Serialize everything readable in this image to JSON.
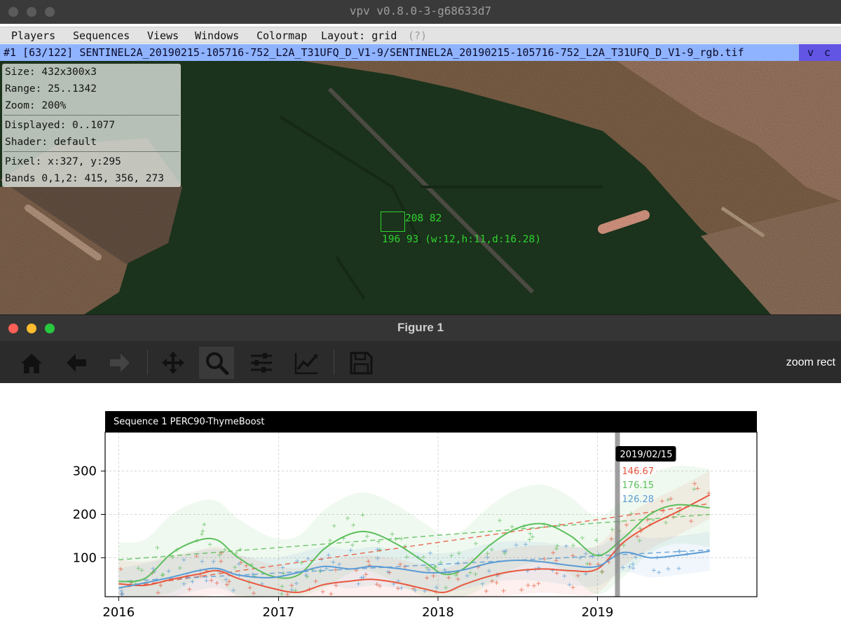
{
  "vpv_window": {
    "title": "vpv v0.8.0-3-g68633d7",
    "menu": [
      "Players",
      "Sequences",
      "Views",
      "Windows",
      "Colormap",
      "Layout: grid"
    ],
    "menu_hint": "(?)",
    "path": "#1 [63/122] SENTINEL2A_20190215-105716-752_L2A_T31UFQ_D_V1-9/SENTINEL2A_20190215-105716-752_L2A_T31UFQ_D_V1-9_rgb.tif",
    "path_flags": "v c p",
    "info": {
      "size": "Size: 432x300x3",
      "range": "Range: 25..1342",
      "zoom": "Zoom: 200%",
      "displayed": "Displayed: 0..1077",
      "shader": "Shader: default",
      "pixel": "Pixel: x:327, y:295",
      "bands": "Bands 0,1,2: 415, 356, 273"
    },
    "selection": {
      "corner_a": "208 82",
      "corner_b": "196 93 (w:12,h:11,d:16.28)"
    }
  },
  "figure_window": {
    "title": "Figure 1",
    "toolbar_icons": [
      "home-icon",
      "back-arrow-icon",
      "forward-arrow-icon",
      "pan-icon",
      "zoom-icon",
      "subplots-icon",
      "edit-curves-icon",
      "save-icon"
    ],
    "status": "zoom rect"
  },
  "chart_data": {
    "type": "line",
    "title": "Sequence 1 PERC90-ThymeBoost",
    "x_ticks": [
      "2016",
      "2017",
      "2018",
      "2019"
    ],
    "x_range": [
      "2015-12-01",
      "2020-01-01"
    ],
    "y_ticks": [
      "100",
      "200",
      "300"
    ],
    "ylim": [
      10,
      390
    ],
    "grid": true,
    "cursor": {
      "date": "2019/02/15",
      "values": [
        "146.67",
        "176.15",
        "126.28"
      ]
    },
    "colors": {
      "red": "#e8573e",
      "green": "#5cbf5c",
      "blue": "#5b9bd5"
    },
    "series": [
      {
        "color": "red",
        "x": [
          "2016-01-01",
          "2016-03-01",
          "2016-05-01",
          "2016-07-01",
          "2016-08-15",
          "2016-10-01",
          "2016-12-15",
          "2017-02-15",
          "2017-04-15",
          "2017-06-15",
          "2017-08-01",
          "2017-10-01",
          "2017-12-01",
          "2018-01-15",
          "2018-03-01",
          "2018-05-01",
          "2018-07-01",
          "2018-09-01",
          "2018-11-01",
          "2019-01-01",
          "2019-03-01",
          "2019-05-01",
          "2019-07-01",
          "2019-09-15"
        ],
        "values": [
          40,
          36,
          50,
          62,
          70,
          52,
          30,
          20,
          38,
          46,
          50,
          42,
          28,
          20,
          38,
          58,
          70,
          74,
          70,
          74,
          135,
          175,
          205,
          245
        ]
      },
      {
        "color": "green",
        "x": [
          "2016-01-01",
          "2016-03-01",
          "2016-05-01",
          "2016-07-01",
          "2016-08-15",
          "2016-10-01",
          "2016-12-15",
          "2017-02-15",
          "2017-04-15",
          "2017-06-15",
          "2017-08-01",
          "2017-10-01",
          "2017-12-01",
          "2018-01-15",
          "2018-03-01",
          "2018-05-01",
          "2018-07-01",
          "2018-09-01",
          "2018-11-01",
          "2019-01-01",
          "2019-03-01",
          "2019-05-01",
          "2019-07-01",
          "2019-09-15"
        ],
        "values": [
          45,
          52,
          110,
          140,
          140,
          100,
          58,
          60,
          120,
          155,
          158,
          130,
          90,
          62,
          75,
          130,
          168,
          178,
          150,
          105,
          145,
          200,
          222,
          215
        ]
      },
      {
        "color": "blue",
        "x": [
          "2016-01-01",
          "2016-03-01",
          "2016-05-01",
          "2016-07-01",
          "2016-08-15",
          "2016-10-01",
          "2016-12-15",
          "2017-02-15",
          "2017-04-15",
          "2017-06-15",
          "2017-08-01",
          "2017-10-01",
          "2017-12-01",
          "2018-01-15",
          "2018-03-01",
          "2018-05-01",
          "2018-07-01",
          "2018-09-01",
          "2018-11-01",
          "2019-01-01",
          "2019-03-01",
          "2019-05-01",
          "2019-07-01",
          "2019-09-15"
        ],
        "values": [
          30,
          42,
          55,
          70,
          75,
          60,
          54,
          66,
          80,
          74,
          80,
          75,
          66,
          66,
          72,
          88,
          94,
          90,
          82,
          80,
          112,
          100,
          105,
          115
        ]
      }
    ],
    "trend_lines": [
      {
        "color": "green",
        "x": [
          "2016-01-01",
          "2019-09-15"
        ],
        "values": [
          95,
          200
        ]
      },
      {
        "color": "red",
        "x": [
          "2016-01-01",
          "2019-09-15"
        ],
        "values": [
          30,
          225
        ]
      },
      {
        "color": "blue",
        "x": [
          "2016-01-01",
          "2019-09-15"
        ],
        "values": [
          45,
          118
        ]
      }
    ]
  }
}
